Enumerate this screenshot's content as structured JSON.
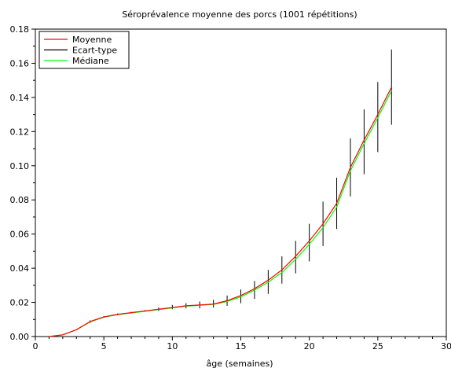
{
  "chart_data": {
    "type": "line",
    "title": "Séroprévalence moyenne des porcs (1001 répétitions)",
    "xlabel": "âge (semaines)",
    "ylabel": "",
    "xlim": [
      0,
      30
    ],
    "ylim": [
      0,
      0.18
    ],
    "xticks": [
      "0",
      "5",
      "10",
      "15",
      "20",
      "25",
      "30"
    ],
    "yticks": [
      "0.00",
      "0.02",
      "0.04",
      "0.06",
      "0.08",
      "0.10",
      "0.12",
      "0.14",
      "0.16",
      "0.18"
    ],
    "grid": false,
    "legend_position": "top-left",
    "x": [
      1,
      2,
      3,
      4,
      5,
      6,
      7,
      8,
      9,
      10,
      11,
      12,
      13,
      14,
      15,
      16,
      17,
      18,
      19,
      20,
      21,
      22,
      23,
      24,
      25,
      26
    ],
    "series": [
      {
        "name": "Moyenne",
        "color": "#ff0000",
        "values": [
          0.0,
          0.001,
          0.004,
          0.0088,
          0.0115,
          0.013,
          0.014,
          0.015,
          0.016,
          0.017,
          0.018,
          0.0185,
          0.019,
          0.021,
          0.024,
          0.028,
          0.033,
          0.039,
          0.047,
          0.056,
          0.066,
          0.078,
          0.099,
          0.115,
          0.13,
          0.146
        ]
      },
      {
        "name": "Ecart-type",
        "color": "#000000",
        "error_low": [
          0.0,
          0.001,
          0.004,
          0.008,
          0.011,
          0.0125,
          0.0135,
          0.0145,
          0.015,
          0.016,
          0.0165,
          0.0165,
          0.017,
          0.018,
          0.0195,
          0.022,
          0.025,
          0.031,
          0.037,
          0.044,
          0.053,
          0.063,
          0.082,
          0.095,
          0.108,
          0.124
        ],
        "error_high": [
          0.0,
          0.001,
          0.004,
          0.0095,
          0.012,
          0.0135,
          0.0145,
          0.0155,
          0.017,
          0.0185,
          0.0195,
          0.0205,
          0.0215,
          0.024,
          0.0275,
          0.0325,
          0.039,
          0.047,
          0.056,
          0.066,
          0.079,
          0.093,
          0.116,
          0.133,
          0.149,
          0.168
        ]
      },
      {
        "name": "Médiane",
        "color": "#00ff00",
        "values": [
          0.0,
          0.001,
          0.004,
          0.0086,
          0.0113,
          0.0128,
          0.0138,
          0.0148,
          0.0158,
          0.0168,
          0.0178,
          0.0183,
          0.0188,
          0.0205,
          0.0233,
          0.0272,
          0.0318,
          0.0375,
          0.0452,
          0.054,
          0.0638,
          0.0758,
          0.097,
          0.113,
          0.128,
          0.144
        ]
      }
    ]
  }
}
